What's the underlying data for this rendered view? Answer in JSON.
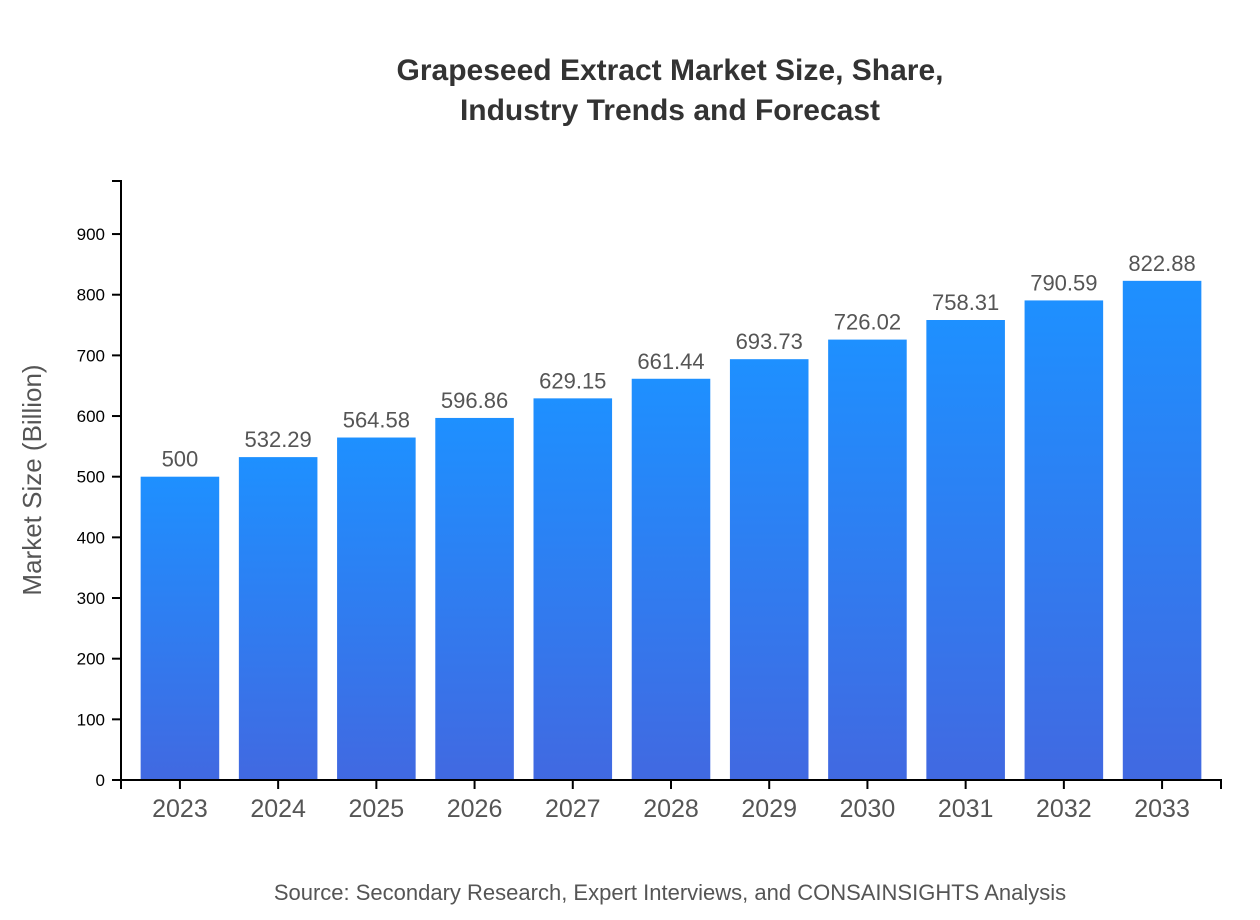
{
  "chart_data": {
    "type": "bar",
    "title_lines": [
      "Grapeseed Extract Market Size, Share,",
      "Industry Trends and Forecast"
    ],
    "xlabel": "",
    "ylabel": "Market Size (Billion)",
    "categories": [
      "2023",
      "2024",
      "2025",
      "2026",
      "2027",
      "2028",
      "2029",
      "2030",
      "2031",
      "2032",
      "2033"
    ],
    "values": [
      500,
      532.29,
      564.58,
      596.86,
      629.15,
      661.44,
      693.73,
      726.02,
      758.31,
      790.59,
      822.88
    ],
    "ylim": [
      0,
      987.46
    ],
    "yticks": [
      0,
      100,
      200,
      300,
      400,
      500,
      600,
      700,
      800,
      900
    ],
    "grid": false,
    "bar_gradient": {
      "top": "#1e90ff",
      "bottom": "#4169e1"
    }
  },
  "source": "Source: Secondary Research, Expert Interviews, and CONSAINSIGHTS Analysis"
}
